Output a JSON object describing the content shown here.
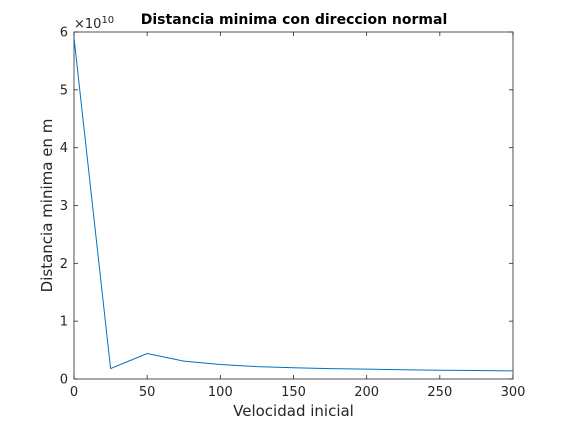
{
  "chart_data": {
    "type": "line",
    "title": "Distancia minima con direccion normal",
    "xlabel": "Velocidad inicial",
    "ylabel": "Distancia minima en m",
    "y_multiplier": {
      "base": "×10",
      "exponent": "10"
    },
    "xlim": [
      0,
      300
    ],
    "ylim": [
      0,
      6
    ],
    "xticks": [
      0,
      50,
      100,
      150,
      200,
      250,
      300
    ],
    "xtick_labels": [
      "0",
      "50",
      "100",
      "150",
      "200",
      "250",
      "300"
    ],
    "yticks": [
      0,
      1,
      2,
      3,
      4,
      5,
      6
    ],
    "ytick_labels": [
      "0",
      "1",
      "2",
      "3",
      "4",
      "5",
      "6"
    ],
    "grid": false,
    "box": true,
    "series": [
      {
        "color": "#0072bd",
        "x": [
          0,
          25,
          50,
          75,
          100,
          125,
          150,
          175,
          200,
          225,
          250,
          275,
          300
        ],
        "y": [
          5.9,
          0.18,
          0.44,
          0.31,
          0.25,
          0.215,
          0.195,
          0.18,
          0.17,
          0.16,
          0.152,
          0.146,
          0.14
        ]
      }
    ]
  }
}
